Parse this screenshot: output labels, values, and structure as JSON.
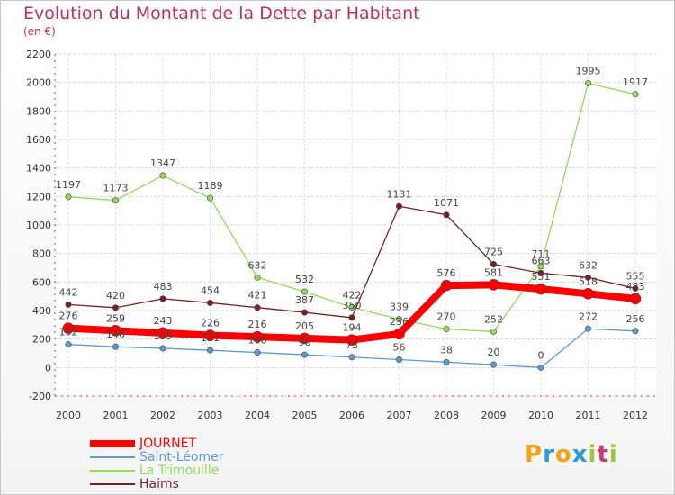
{
  "title": "Evolution du Montant de la Dette par Habitant",
  "unit": "(en €)",
  "logo": {
    "letters": [
      "P",
      "r",
      "o",
      "x",
      "i",
      "t",
      "i"
    ],
    "colors": [
      "#f2a31b",
      "#2f9bd6",
      "#f2a31b",
      "#2f9bd6",
      "#9bc83a",
      "#c93b6b",
      "#9bc83a"
    ]
  },
  "chart_data": {
    "type": "line",
    "title": "Evolution du Montant de la Dette par Habitant",
    "ylabel": "(en €)",
    "xlabel": "",
    "ylim": [
      -200,
      2200
    ],
    "yticks": [
      -200,
      0,
      200,
      400,
      600,
      800,
      1000,
      1200,
      1400,
      1600,
      1800,
      2000,
      2200
    ],
    "grid": true,
    "x": [
      "2000",
      "2001",
      "2002",
      "2003",
      "2004",
      "2005",
      "2006",
      "2007",
      "2008",
      "2009",
      "2010",
      "2011",
      "2012"
    ],
    "legend_position": "bottom-left",
    "series": [
      {
        "name": "Saint-Léomer",
        "color": "#5b9bd5",
        "width": 1.3,
        "values": [
          162,
          146,
          135,
          121,
          106,
          90,
          73,
          56,
          38,
          20,
          0,
          272,
          256
        ]
      },
      {
        "name": "La Trimouille",
        "color": "#8fdb5a",
        "width": 1.3,
        "values": [
          1197,
          1173,
          1347,
          1189,
          632,
          532,
          422,
          339,
          270,
          252,
          711,
          1995,
          1917
        ]
      },
      {
        "name": "Haims",
        "color": "#7a1f1f",
        "width": 1.3,
        "values": [
          442,
          420,
          483,
          454,
          421,
          387,
          350,
          1131,
          1071,
          725,
          663,
          632,
          555
        ]
      },
      {
        "name": "JOURNET",
        "color": "#ff0000",
        "width": 8,
        "values": [
          276,
          259,
          243,
          226,
          216,
          205,
          194,
          236,
          576,
          581,
          551,
          518,
          483
        ]
      }
    ]
  }
}
